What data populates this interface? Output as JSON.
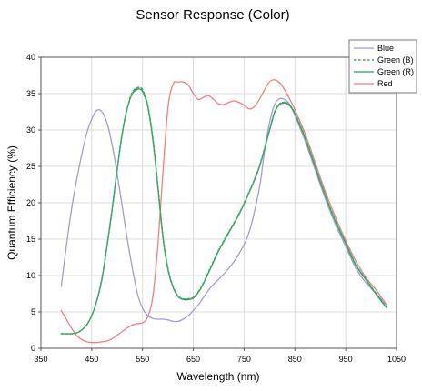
{
  "chart_data": {
    "type": "line",
    "title": "Sensor Response (Color)",
    "xlabel": "Wavelength (nm)",
    "ylabel": "Quantum Efficiency (%)",
    "xlim": [
      350,
      1050
    ],
    "ylim": [
      0,
      40
    ],
    "xticks": [
      350,
      450,
      550,
      650,
      750,
      850,
      950,
      1050
    ],
    "yticks": [
      0,
      5,
      10,
      15,
      20,
      25,
      30,
      35,
      40
    ],
    "grid": true,
    "legend_position": "top-right",
    "series": [
      {
        "name": "Blue",
        "color": "#a59bd4",
        "dash": "solid",
        "x": [
          390,
          400,
          410,
          420,
          430,
          440,
          450,
          460,
          470,
          480,
          490,
          500,
          510,
          520,
          530,
          540,
          550,
          560,
          570,
          580,
          590,
          600,
          610,
          620,
          630,
          640,
          650,
          660,
          670,
          680,
          690,
          700,
          720,
          740,
          760,
          780,
          790,
          800,
          810,
          820,
          830,
          840,
          850,
          870,
          890,
          910,
          930,
          950,
          970,
          990,
          1010,
          1030
        ],
        "y": [
          8.5,
          14,
          19,
          23,
          26.5,
          29.5,
          31.5,
          32.7,
          32.5,
          31,
          28,
          24,
          19.5,
          15,
          11,
          7.5,
          5.5,
          4.5,
          4.1,
          4,
          4,
          3.9,
          3.7,
          3.7,
          4,
          4.5,
          5.2,
          6,
          7,
          8,
          8.8,
          9.5,
          11,
          13,
          16,
          22,
          27,
          31,
          33.5,
          34.3,
          34.2,
          33.5,
          32,
          28.5,
          24.5,
          20.5,
          17,
          14,
          11,
          9,
          7.5,
          6
        ]
      },
      {
        "name": "Green (B)",
        "color": "#3cab6a",
        "dash": "dotted",
        "x": [
          390,
          400,
          410,
          420,
          430,
          440,
          450,
          460,
          470,
          480,
          490,
          500,
          510,
          520,
          530,
          540,
          545,
          550,
          560,
          570,
          580,
          590,
          600,
          610,
          620,
          630,
          640,
          650,
          660,
          670,
          680,
          690,
          700,
          720,
          740,
          760,
          780,
          800,
          810,
          820,
          830,
          840,
          850,
          870,
          890,
          910,
          930,
          950,
          970,
          990,
          1010,
          1030
        ],
        "y": [
          2,
          2,
          2,
          2.1,
          2.5,
          3.2,
          4.5,
          6.5,
          9.5,
          14,
          19,
          24.5,
          29.5,
          33,
          35.2,
          35.8,
          35.8,
          35.5,
          33.5,
          29,
          22.5,
          15.5,
          11,
          8.5,
          7.2,
          6.8,
          6.8,
          7,
          7.8,
          9,
          10.5,
          12,
          13.5,
          16,
          18.5,
          21.5,
          25,
          30,
          32.5,
          33.6,
          33.8,
          33.4,
          32.3,
          29,
          25,
          21,
          17.5,
          14.5,
          11.5,
          9.5,
          7.5,
          5.7
        ]
      },
      {
        "name": "Green (R)",
        "color": "#2e9c5a",
        "dash": "solid",
        "x": [
          390,
          400,
          410,
          420,
          430,
          440,
          450,
          460,
          470,
          480,
          490,
          500,
          510,
          520,
          530,
          540,
          545,
          550,
          560,
          570,
          580,
          590,
          600,
          610,
          620,
          630,
          640,
          650,
          660,
          670,
          680,
          690,
          700,
          720,
          740,
          760,
          780,
          800,
          810,
          820,
          830,
          840,
          850,
          870,
          890,
          910,
          930,
          950,
          970,
          990,
          1010,
          1030
        ],
        "y": [
          2,
          2,
          2,
          2.1,
          2.5,
          3.2,
          4.5,
          6.5,
          9.5,
          14,
          19,
          24.5,
          29.5,
          33,
          35,
          35.6,
          35.6,
          35.3,
          33.3,
          28.8,
          22.3,
          15.3,
          10.8,
          8.4,
          7.1,
          6.7,
          6.7,
          6.9,
          7.7,
          8.9,
          10.4,
          11.9,
          13.4,
          15.9,
          18.4,
          21.4,
          24.9,
          29.9,
          32.4,
          33.5,
          33.7,
          33.3,
          32.2,
          28.9,
          24.9,
          20.9,
          17.4,
          14.4,
          11.4,
          9.4,
          7.4,
          5.6
        ]
      },
      {
        "name": "Red",
        "color": "#f08080",
        "dash": "solid",
        "x": [
          390,
          400,
          410,
          420,
          430,
          440,
          450,
          460,
          470,
          480,
          490,
          500,
          510,
          520,
          530,
          540,
          550,
          560,
          570,
          580,
          590,
          600,
          610,
          620,
          630,
          640,
          650,
          660,
          670,
          680,
          690,
          700,
          710,
          720,
          730,
          740,
          750,
          760,
          770,
          780,
          790,
          800,
          810,
          820,
          830,
          840,
          850,
          870,
          890,
          910,
          930,
          950,
          970,
          990,
          1010,
          1030
        ],
        "y": [
          5.2,
          4,
          2.8,
          1.8,
          1.2,
          0.9,
          0.8,
          0.8,
          0.9,
          1,
          1.3,
          1.8,
          2.3,
          2.8,
          3.2,
          3.4,
          3.5,
          4.3,
          7,
          14,
          24,
          33,
          36.3,
          36.6,
          36.6,
          36.2,
          35,
          34.2,
          34.5,
          34.7,
          34.2,
          33.6,
          33.5,
          33.8,
          34,
          33.8,
          33.4,
          32.9,
          33.2,
          34.2,
          35.5,
          36.6,
          36.9,
          36.5,
          35.5,
          34.2,
          32.8,
          29.5,
          25.5,
          21.5,
          18,
          14.8,
          12,
          9.7,
          8,
          6
        ]
      }
    ]
  }
}
